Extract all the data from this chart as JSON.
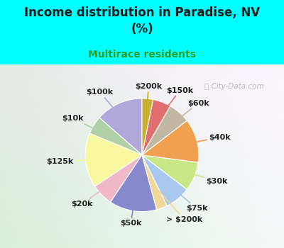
{
  "title": "Income distribution in Paradise, NV\n(%)",
  "subtitle": "Multirace residents",
  "title_color": "#1a1a1a",
  "subtitle_color": "#2a9d2a",
  "bg_top_color": "#00ffff",
  "chart_bg_left": "#e0f5e0",
  "chart_bg_right": "#c8eef0",
  "watermark": "City-Data.com",
  "slices": [
    {
      "label": "$100k",
      "value": 13,
      "color": "#b0a8d8"
    },
    {
      "label": "$10k",
      "value": 5,
      "color": "#b0d0a8"
    },
    {
      "label": "$125k",
      "value": 15,
      "color": "#f8f8a0"
    },
    {
      "label": "$20k",
      "value": 6,
      "color": "#f0b8c8"
    },
    {
      "label": "$50k",
      "value": 13,
      "color": "#8888cc"
    },
    {
      "label": "> $200k",
      "value": 3,
      "color": "#f0d898"
    },
    {
      "label": "$75k",
      "value": 7,
      "color": "#a8c8f0"
    },
    {
      "label": "$30k",
      "value": 8,
      "color": "#c8e888"
    },
    {
      "label": "$40k",
      "value": 12,
      "color": "#f0a050"
    },
    {
      "label": "$60k",
      "value": 6,
      "color": "#c0b8a0"
    },
    {
      "label": "$150k",
      "value": 5,
      "color": "#e07070"
    },
    {
      "label": "$200k",
      "value": 3,
      "color": "#c8b030"
    }
  ],
  "label_fontsize": 8,
  "label_fontweight": "bold",
  "label_color": "#222222",
  "startangle": 90
}
